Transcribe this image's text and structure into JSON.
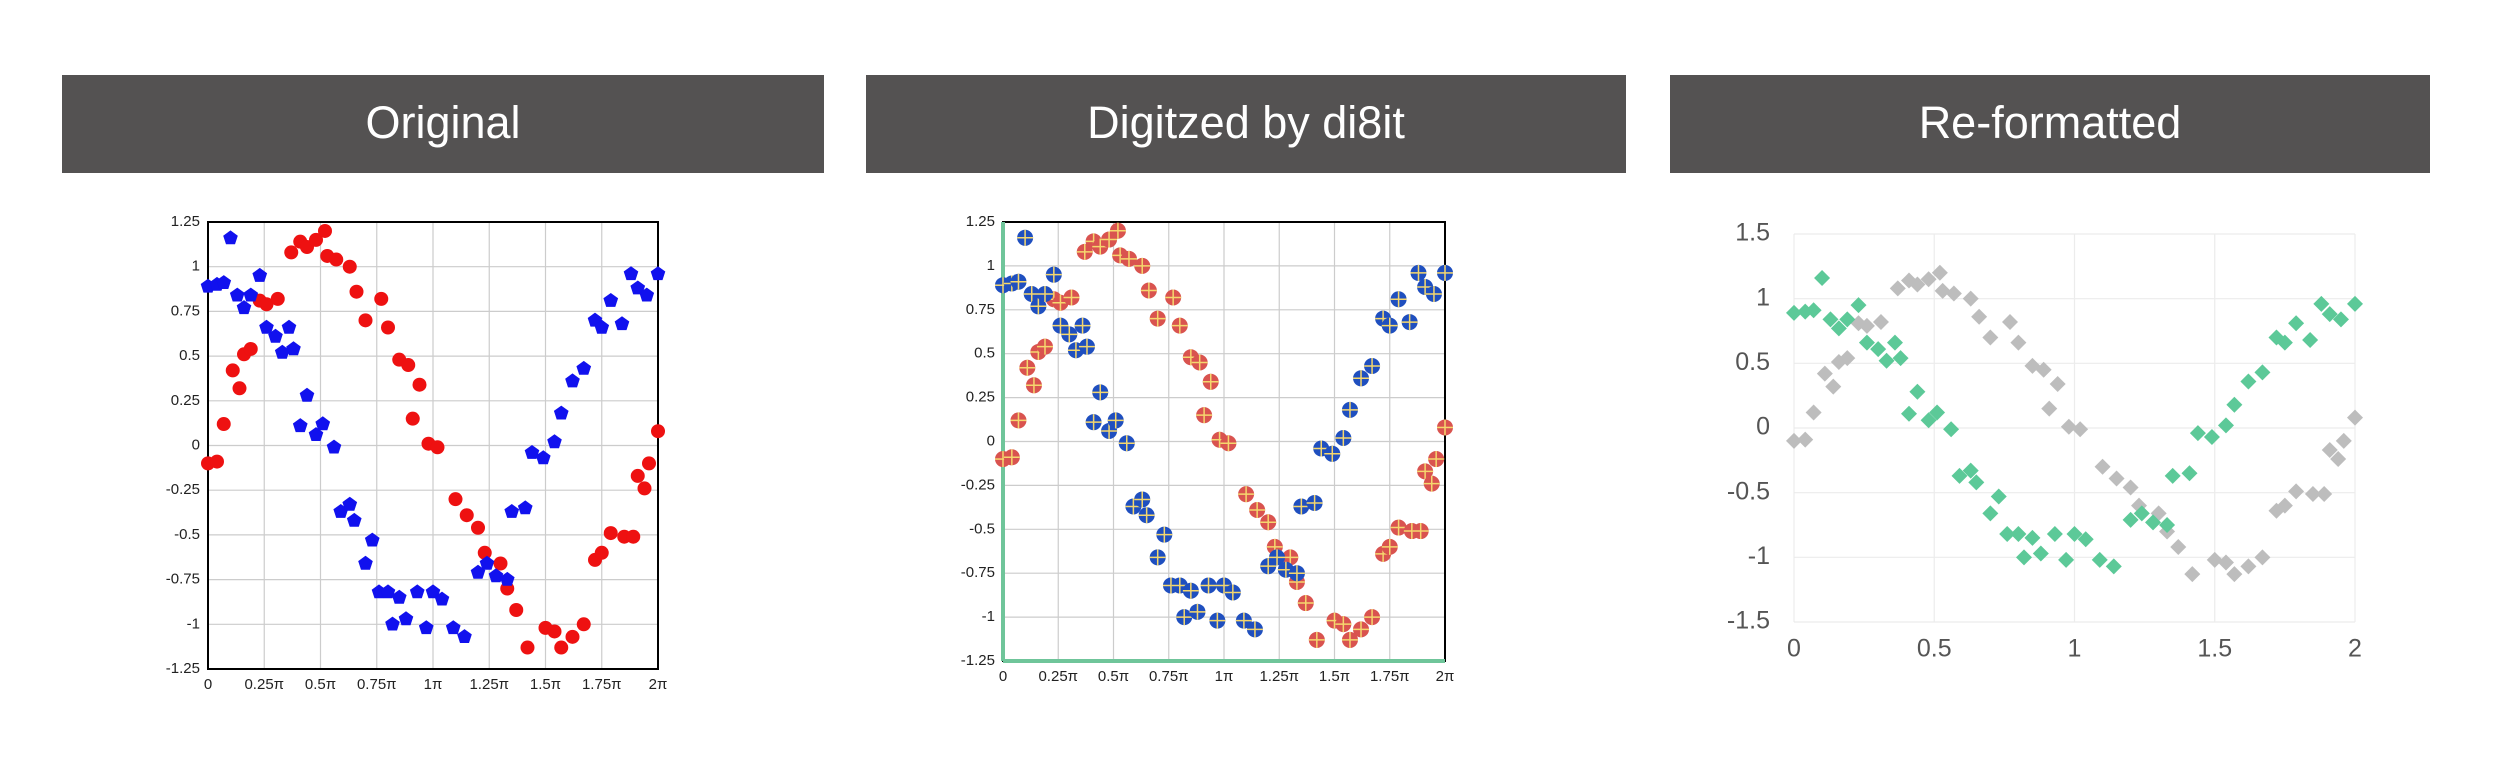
{
  "chart_data": [
    {
      "type": "scatter",
      "title": "Original",
      "grid": true,
      "xlim": [
        0,
        2
      ],
      "ylim": [
        -1.25,
        1.25
      ],
      "xticks": [
        0,
        {
          "value": 0.25,
          "label": "0.25π"
        },
        {
          "value": 0.5,
          "label": "0.5π"
        },
        {
          "value": 0.75,
          "label": "0.75π"
        },
        {
          "value": 1,
          "label": "1π"
        },
        {
          "value": 1.25,
          "label": "1.25π"
        },
        {
          "value": 1.5,
          "label": "1.5π"
        },
        {
          "value": 1.75,
          "label": "1.75π"
        },
        {
          "value": 2,
          "label": "2π"
        }
      ],
      "yticks": [
        1.25,
        1,
        0.75,
        0.5,
        0.25,
        0,
        -0.25,
        -0.5,
        -0.75,
        -1,
        -1.25
      ],
      "series": [
        {
          "color": "#ee1111",
          "marker": "circle",
          "x": [
            0.0,
            0.04,
            0.07,
            0.11,
            0.14,
            0.16,
            0.19,
            0.23,
            0.26,
            0.31,
            0.37,
            0.41,
            0.44,
            0.48,
            0.52,
            0.53,
            0.57,
            0.63,
            0.66,
            0.7,
            0.77,
            0.8,
            0.85,
            0.89,
            0.94,
            0.91,
            0.98,
            1.02,
            1.1,
            1.15,
            1.2,
            1.23,
            1.3,
            1.33,
            1.37,
            1.42,
            1.5,
            1.54,
            1.57,
            1.62,
            1.67,
            1.72,
            1.75,
            1.79,
            1.85,
            1.89,
            1.91,
            1.94,
            1.96,
            2.0
          ],
          "values": [
            -0.1,
            -0.09,
            0.12,
            0.42,
            0.32,
            0.51,
            0.54,
            0.81,
            0.79,
            0.82,
            1.08,
            1.14,
            1.11,
            1.15,
            1.2,
            1.06,
            1.04,
            1.0,
            0.86,
            0.7,
            0.82,
            0.66,
            0.48,
            0.45,
            0.34,
            0.15,
            0.01,
            -0.01,
            -0.3,
            -0.39,
            -0.46,
            -0.6,
            -0.66,
            -0.8,
            -0.92,
            -1.13,
            -1.02,
            -1.04,
            -1.13,
            -1.07,
            -1.0,
            -0.64,
            -0.6,
            -0.49,
            -0.51,
            -0.51,
            -0.17,
            -0.24,
            -0.1,
            0.08
          ]
        },
        {
          "color": "#1111ee",
          "marker": "pentagon",
          "x": [
            0.0,
            0.04,
            0.07,
            0.1,
            0.13,
            0.16,
            0.19,
            0.23,
            0.26,
            0.3,
            0.33,
            0.36,
            0.38,
            0.41,
            0.44,
            0.48,
            0.51,
            0.56,
            0.59,
            0.63,
            0.65,
            0.7,
            0.73,
            0.76,
            0.8,
            0.82,
            0.85,
            0.88,
            0.93,
            0.97,
            1.0,
            1.04,
            1.09,
            1.14,
            1.2,
            1.24,
            1.28,
            1.33,
            1.35,
            1.41,
            1.44,
            1.49,
            1.54,
            1.57,
            1.62,
            1.67,
            1.72,
            1.75,
            1.79,
            1.84,
            1.88,
            1.91,
            1.95,
            2.0
          ],
          "values": [
            0.89,
            0.9,
            0.91,
            1.16,
            0.84,
            0.77,
            0.84,
            0.95,
            0.66,
            0.61,
            0.52,
            0.66,
            0.54,
            0.11,
            0.28,
            0.06,
            0.12,
            -0.01,
            -0.37,
            -0.33,
            -0.42,
            -0.66,
            -0.53,
            -0.82,
            -0.82,
            -1.0,
            -0.85,
            -0.97,
            -0.82,
            -1.02,
            -0.82,
            -0.86,
            -1.02,
            -1.07,
            -0.71,
            -0.66,
            -0.73,
            -0.75,
            -0.37,
            -0.35,
            -0.04,
            -0.07,
            0.02,
            0.18,
            0.36,
            0.43,
            0.7,
            0.66,
            0.81,
            0.68,
            0.96,
            0.88,
            0.84,
            0.96
          ]
        }
      ]
    },
    {
      "type": "scatter",
      "title": "Digitzed by di8it",
      "grid": true,
      "xlim": [
        0,
        2
      ],
      "ylim": [
        -1.25,
        1.25
      ],
      "xticks": [
        0,
        {
          "value": 0.25,
          "label": "0.25π"
        },
        {
          "value": 0.5,
          "label": "0.5π"
        },
        {
          "value": 0.75,
          "label": "0.75π"
        },
        {
          "value": 1,
          "label": "1π"
        },
        {
          "value": 1.25,
          "label": "1.25π"
        },
        {
          "value": 1.5,
          "label": "1.5π"
        },
        {
          "value": 1.75,
          "label": "1.75π"
        },
        {
          "value": 2,
          "label": "2π"
        }
      ],
      "yticks": [
        1.25,
        1,
        0.75,
        0.5,
        0.25,
        0,
        -0.25,
        -0.5,
        -0.75,
        -1,
        -1.25
      ],
      "series": [
        {
          "color": "#d9534f",
          "marker": "circle",
          "x": [
            0.0,
            0.04,
            0.07,
            0.11,
            0.14,
            0.16,
            0.19,
            0.23,
            0.26,
            0.31,
            0.37,
            0.41,
            0.44,
            0.48,
            0.52,
            0.53,
            0.57,
            0.63,
            0.66,
            0.7,
            0.77,
            0.8,
            0.85,
            0.89,
            0.94,
            0.91,
            0.98,
            1.02,
            1.1,
            1.15,
            1.2,
            1.23,
            1.3,
            1.33,
            1.37,
            1.42,
            1.5,
            1.54,
            1.57,
            1.62,
            1.67,
            1.72,
            1.75,
            1.79,
            1.85,
            1.89,
            1.91,
            1.94,
            1.96,
            2.0
          ],
          "values": [
            -0.1,
            -0.09,
            0.12,
            0.42,
            0.32,
            0.51,
            0.54,
            0.81,
            0.79,
            0.82,
            1.08,
            1.14,
            1.11,
            1.15,
            1.2,
            1.06,
            1.04,
            1.0,
            0.86,
            0.7,
            0.82,
            0.66,
            0.48,
            0.45,
            0.34,
            0.15,
            0.01,
            -0.01,
            -0.3,
            -0.39,
            -0.46,
            -0.6,
            -0.66,
            -0.8,
            -0.92,
            -1.13,
            -1.02,
            -1.04,
            -1.13,
            -1.07,
            -1.0,
            -0.64,
            -0.6,
            -0.49,
            -0.51,
            -0.51,
            -0.17,
            -0.24,
            -0.1,
            0.08
          ]
        },
        {
          "color": "#1f4fbf",
          "marker": "circle",
          "x": [
            0.0,
            0.04,
            0.07,
            0.1,
            0.13,
            0.16,
            0.19,
            0.23,
            0.26,
            0.3,
            0.33,
            0.36,
            0.38,
            0.41,
            0.44,
            0.48,
            0.51,
            0.56,
            0.59,
            0.63,
            0.65,
            0.7,
            0.73,
            0.76,
            0.8,
            0.82,
            0.85,
            0.88,
            0.93,
            0.97,
            1.0,
            1.04,
            1.09,
            1.14,
            1.2,
            1.24,
            1.28,
            1.33,
            1.35,
            1.41,
            1.44,
            1.49,
            1.54,
            1.57,
            1.62,
            1.67,
            1.72,
            1.75,
            1.79,
            1.84,
            1.88,
            1.91,
            1.95,
            2.0
          ],
          "values": [
            0.89,
            0.9,
            0.91,
            1.16,
            0.84,
            0.77,
            0.84,
            0.95,
            0.66,
            0.61,
            0.52,
            0.66,
            0.54,
            0.11,
            0.28,
            0.06,
            0.12,
            -0.01,
            -0.37,
            -0.33,
            -0.42,
            -0.66,
            -0.53,
            -0.82,
            -0.82,
            -1.0,
            -0.85,
            -0.97,
            -0.82,
            -1.02,
            -0.82,
            -0.86,
            -1.02,
            -1.07,
            -0.71,
            -0.66,
            -0.73,
            -0.75,
            -0.37,
            -0.35,
            -0.04,
            -0.07,
            0.02,
            0.18,
            0.36,
            0.43,
            0.7,
            0.66,
            0.81,
            0.68,
            0.96,
            0.88,
            0.84,
            0.96
          ]
        }
      ]
    },
    {
      "type": "scatter",
      "title": "Re-formatted",
      "grid": true,
      "xlim": [
        0,
        2
      ],
      "ylim": [
        -1.5,
        1.5
      ],
      "xticks": [
        0,
        0.5,
        1,
        1.5,
        2
      ],
      "yticks": [
        1.5,
        1,
        0.5,
        0,
        -0.5,
        -1,
        -1.5
      ],
      "series": [
        {
          "color": "#bdbdbd",
          "marker": "diamond",
          "x": [
            0.0,
            0.04,
            0.07,
            0.11,
            0.14,
            0.16,
            0.19,
            0.23,
            0.26,
            0.31,
            0.37,
            0.41,
            0.44,
            0.48,
            0.52,
            0.53,
            0.57,
            0.63,
            0.66,
            0.7,
            0.77,
            0.8,
            0.85,
            0.89,
            0.94,
            0.91,
            0.98,
            1.02,
            1.1,
            1.15,
            1.2,
            1.23,
            1.3,
            1.33,
            1.37,
            1.42,
            1.5,
            1.54,
            1.57,
            1.62,
            1.67,
            1.72,
            1.75,
            1.79,
            1.85,
            1.89,
            1.91,
            1.94,
            1.96,
            2.0
          ],
          "values": [
            -0.1,
            -0.09,
            0.12,
            0.42,
            0.32,
            0.51,
            0.54,
            0.81,
            0.79,
            0.82,
            1.08,
            1.14,
            1.11,
            1.15,
            1.2,
            1.06,
            1.04,
            1.0,
            0.86,
            0.7,
            0.82,
            0.66,
            0.48,
            0.45,
            0.34,
            0.15,
            0.01,
            -0.01,
            -0.3,
            -0.39,
            -0.46,
            -0.6,
            -0.66,
            -0.8,
            -0.92,
            -1.13,
            -1.02,
            -1.04,
            -1.13,
            -1.07,
            -1.0,
            -0.64,
            -0.6,
            -0.49,
            -0.51,
            -0.51,
            -0.17,
            -0.24,
            -0.1,
            0.08
          ]
        },
        {
          "color": "#5cc998",
          "marker": "diamond",
          "x": [
            0.0,
            0.04,
            0.07,
            0.1,
            0.13,
            0.16,
            0.19,
            0.23,
            0.26,
            0.3,
            0.33,
            0.36,
            0.38,
            0.41,
            0.44,
            0.48,
            0.51,
            0.56,
            0.59,
            0.63,
            0.65,
            0.7,
            0.73,
            0.76,
            0.8,
            0.82,
            0.85,
            0.88,
            0.93,
            0.97,
            1.0,
            1.04,
            1.09,
            1.14,
            1.2,
            1.24,
            1.28,
            1.33,
            1.35,
            1.41,
            1.44,
            1.49,
            1.54,
            1.57,
            1.62,
            1.67,
            1.72,
            1.75,
            1.79,
            1.84,
            1.88,
            1.91,
            1.95,
            2.0
          ],
          "values": [
            0.89,
            0.9,
            0.91,
            1.16,
            0.84,
            0.77,
            0.84,
            0.95,
            0.66,
            0.61,
            0.52,
            0.66,
            0.54,
            0.11,
            0.28,
            0.06,
            0.12,
            -0.01,
            -0.37,
            -0.33,
            -0.42,
            -0.66,
            -0.53,
            -0.82,
            -0.82,
            -1.0,
            -0.85,
            -0.97,
            -0.82,
            -1.02,
            -0.82,
            -0.86,
            -1.02,
            -1.07,
            -0.71,
            -0.66,
            -0.73,
            -0.75,
            -0.37,
            -0.35,
            -0.04,
            -0.07,
            0.02,
            0.18,
            0.36,
            0.43,
            0.7,
            0.66,
            0.81,
            0.68,
            0.96,
            0.88,
            0.84,
            0.96
          ]
        }
      ]
    }
  ]
}
